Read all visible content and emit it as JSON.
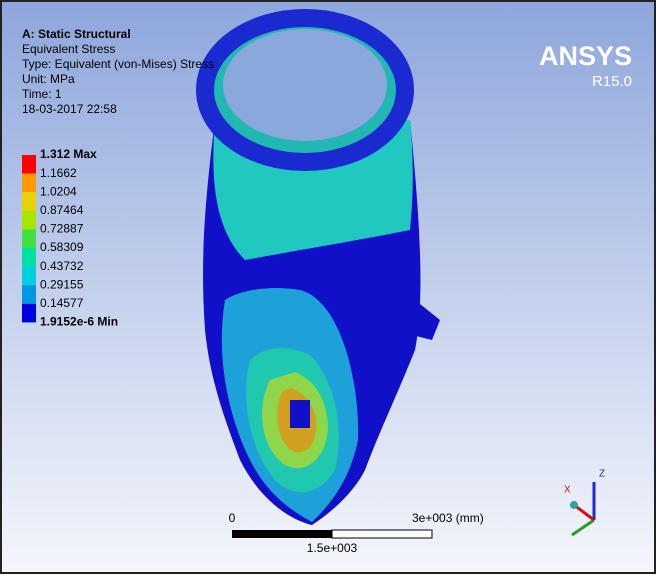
{
  "header": {
    "title": "A: Static Structural",
    "lines": [
      "Equivalent Stress",
      "Type: Equivalent (von-Mises) Stress",
      "Unit: MPa",
      "Time: 1",
      "18-03-2017 22:58"
    ]
  },
  "legend": {
    "labels": [
      "1.312 Max",
      "1.1662",
      "1.0204",
      "0.87464",
      "0.72887",
      "0.58309",
      "0.43732",
      "0.29155",
      "0.14577",
      "1.9152e-6 Min"
    ],
    "colors": [
      "#ff0000",
      "#ff9900",
      "#e6d400",
      "#a8e600",
      "#40e040",
      "#00e0a0",
      "#00d0e0",
      "#0098e0",
      "#0000e0"
    ]
  },
  "logo": {
    "name": "ANSYS",
    "version": "R15.0"
  },
  "scale_bar": {
    "start": "0",
    "end": "3e+003 (mm)",
    "mid": "1.5e+003"
  },
  "triad": {
    "x": "X",
    "z": "Z"
  }
}
